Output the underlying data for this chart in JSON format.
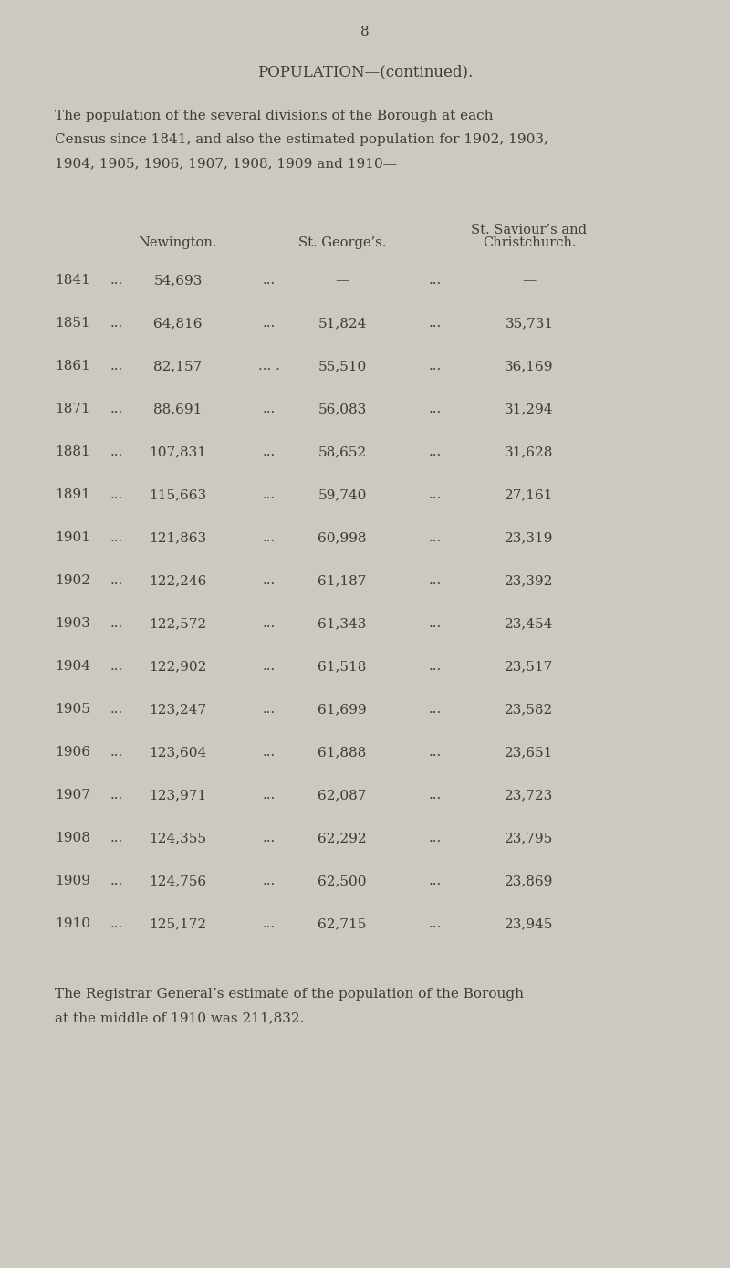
{
  "page_number": "8",
  "title": "POPULATION—(continued).",
  "intro_lines": [
    "The population of the several divisions of the Borough at each",
    "Census since 1841, and also the estimated population for 1902, 1903,",
    "1904, 1905, 1906, 1907, 1908, 1909 and 1910—"
  ],
  "header_newington": "Newington.",
  "header_stgeorges": "St. George’s.",
  "header_stsaviours_line1": "St. Saviour’s and",
  "header_stsaviours_line2": "Christchurch.",
  "rows": [
    {
      "year": "1841",
      "dots1": "...",
      "newington": "54,693",
      "dots2": "...",
      "st_georges": "—",
      "dots3": "...",
      "st_saviours": "—"
    },
    {
      "year": "1851",
      "dots1": "...",
      "newington": "64,816",
      "dots2": "...",
      "st_georges": "51,824",
      "dots3": "...",
      "st_saviours": "35,731"
    },
    {
      "year": "1861",
      "dots1": "...",
      "newington": "82,157",
      "dots2": "... .",
      "st_georges": "55,510",
      "dots3": "...",
      "st_saviours": "36,169"
    },
    {
      "year": "1871",
      "dots1": "...",
      "newington": "88,691",
      "dots2": "...",
      "st_georges": "56,083",
      "dots3": "...",
      "st_saviours": "31,294"
    },
    {
      "year": "1881",
      "dots1": "...",
      "newington": "107,831",
      "dots2": "...",
      "st_georges": "58,652",
      "dots3": "...",
      "st_saviours": "31,628"
    },
    {
      "year": "1891",
      "dots1": "...",
      "newington": "115,663",
      "dots2": "...",
      "st_georges": "59,740",
      "dots3": "...",
      "st_saviours": "27,161"
    },
    {
      "year": "1901",
      "dots1": "...",
      "newington": "121,863",
      "dots2": "...",
      "st_georges": "60,998",
      "dots3": "...",
      "st_saviours": "23,319"
    },
    {
      "year": "1902",
      "dots1": "...",
      "newington": "122,246",
      "dots2": "...",
      "st_georges": "61,187",
      "dots3": "...",
      "st_saviours": "23,392"
    },
    {
      "year": "1903",
      "dots1": "...",
      "newington": "122,572",
      "dots2": "...",
      "st_georges": "61,343",
      "dots3": "...",
      "st_saviours": "23,454"
    },
    {
      "year": "1904",
      "dots1": "...",
      "newington": "122,902",
      "dots2": "...",
      "st_georges": "61,518",
      "dots3": "...",
      "st_saviours": "23,517"
    },
    {
      "year": "1905",
      "dots1": "...",
      "newington": "123,247",
      "dots2": "...",
      "st_georges": "61,699",
      "dots3": "...",
      "st_saviours": "23,582"
    },
    {
      "year": "1906",
      "dots1": "...",
      "newington": "123,604",
      "dots2": "...",
      "st_georges": "61,888",
      "dots3": "...",
      "st_saviours": "23,651"
    },
    {
      "year": "1907",
      "dots1": "...",
      "newington": "123,971",
      "dots2": "...",
      "st_georges": "62,087",
      "dots3": "...",
      "st_saviours": "23,723"
    },
    {
      "year": "1908",
      "dots1": "...",
      "newington": "124,355",
      "dots2": "...",
      "st_georges": "62,292",
      "dots3": "...",
      "st_saviours": "23,795"
    },
    {
      "year": "1909",
      "dots1": "...",
      "newington": "124,756",
      "dots2": "...",
      "st_georges": "62,500",
      "dots3": "...",
      "st_saviours": "23,869"
    },
    {
      "year": "1910",
      "dots1": "...",
      "newington": "125,172",
      "dots2": "...",
      "st_georges": "62,715",
      "dots3": "...",
      "st_saviours": "23,945"
    }
  ],
  "footer_lines": [
    "The Registrar General’s estimate of the population of the Borough",
    "at the middle of 1910 was 211,832."
  ],
  "bg_color": "#ccc9c0",
  "text_color": "#3d3d3d",
  "fs_page": 11,
  "fs_title": 12,
  "fs_body": 11,
  "fs_header": 10.5
}
